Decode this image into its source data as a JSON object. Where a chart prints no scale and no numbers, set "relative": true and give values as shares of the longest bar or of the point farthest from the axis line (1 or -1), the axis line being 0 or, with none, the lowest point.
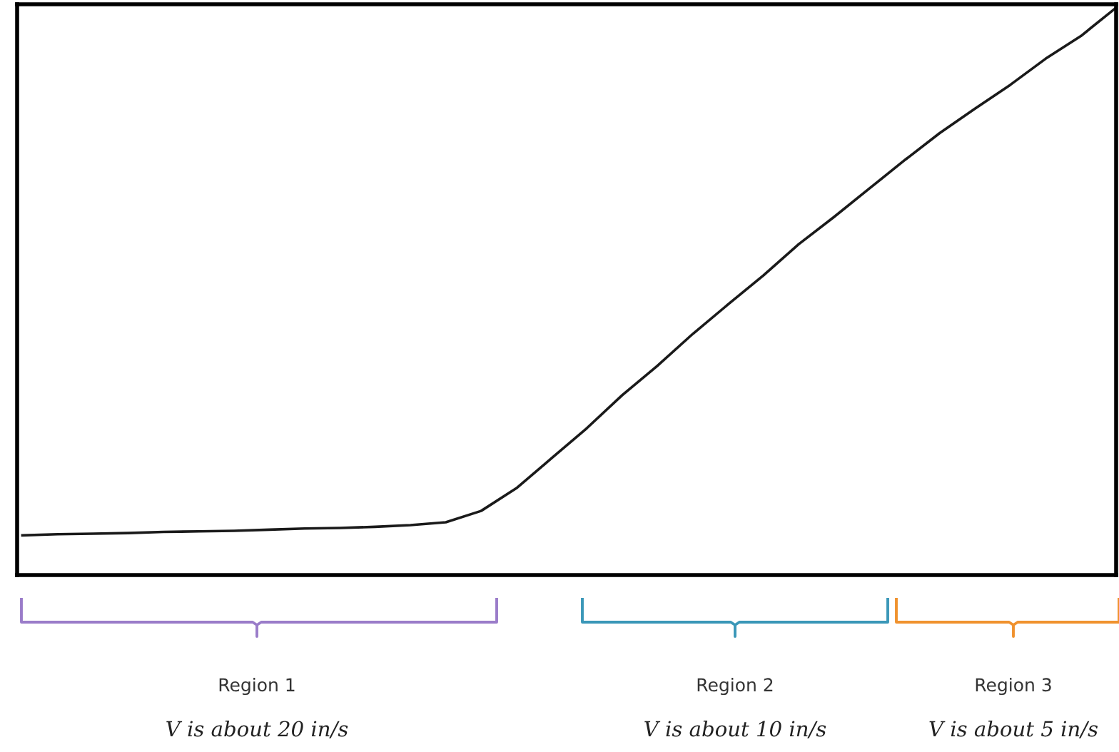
{
  "chart_data": {
    "type": "line",
    "relative": true,
    "color": "#1a1a1a",
    "categories": [
      null,
      null,
      null,
      null,
      null,
      null,
      null,
      null,
      null,
      null,
      null,
      null,
      null,
      null,
      null,
      null,
      null,
      null,
      null,
      null,
      null,
      null,
      null,
      null,
      null,
      null,
      null,
      null,
      null,
      null,
      null,
      null
    ],
    "values": [
      0.07,
      0.072,
      0.073,
      0.074,
      0.076,
      0.077,
      0.078,
      0.08,
      0.082,
      0.083,
      0.085,
      0.088,
      0.093,
      0.113,
      0.153,
      0.206,
      0.259,
      0.317,
      0.369,
      0.425,
      0.477,
      0.528,
      0.583,
      0.631,
      0.681,
      0.731,
      0.779,
      0.822,
      0.864,
      0.91,
      0.95,
      1.0
    ],
    "grid": false,
    "legend": false,
    "marker": "none",
    "line_style": "solid",
    "annotations": [
      "Region 1",
      "V is about 20 in/s",
      "Region 2",
      "V is about 10 in/s",
      "Region 3",
      "V is about 5 in/s"
    ]
  }
}
